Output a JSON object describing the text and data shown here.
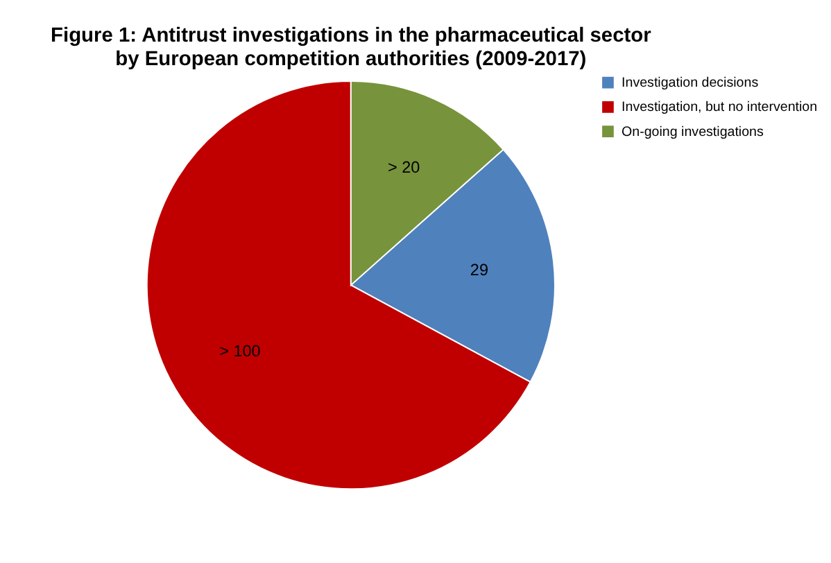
{
  "chart_data": {
    "type": "pie",
    "title": [
      "Figure 1:    Antitrust investigations in the pharmaceutical sector",
      "by European competition authorities (2009-2017)"
    ],
    "categories": [
      "Investigation decisions",
      "Investigation, but no intervention",
      "On-going investigations"
    ],
    "values": [
      29,
      100,
      20
    ],
    "value_labels": [
      "29",
      "> 100",
      "> 20"
    ],
    "colors": [
      "#4f81bd",
      "#c00000",
      "#77933c"
    ],
    "legend": "right"
  }
}
